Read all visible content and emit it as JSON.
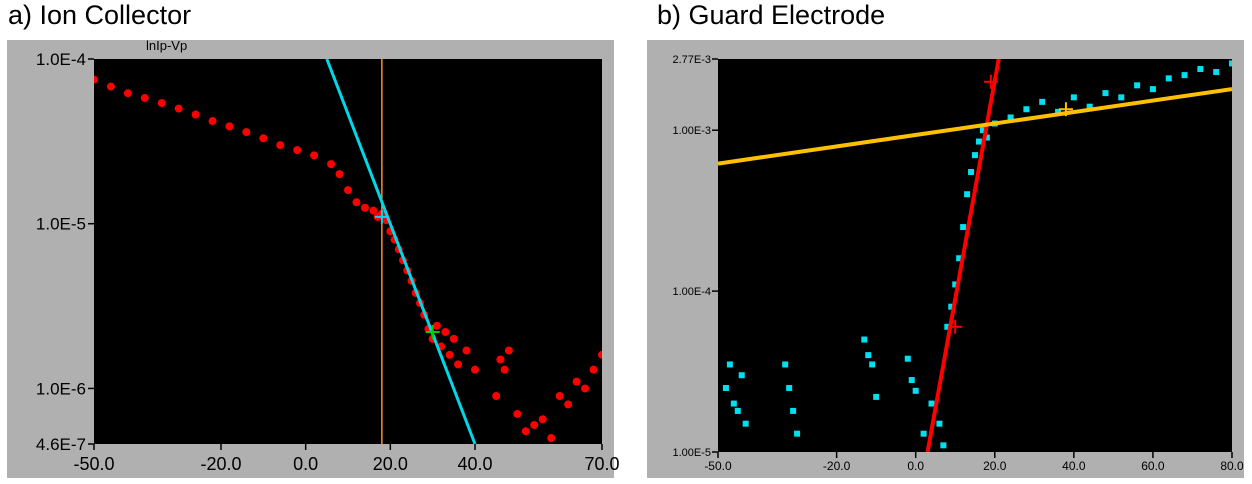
{
  "panels": {
    "a": {
      "title": "a) Ion Collector"
    },
    "b": {
      "title": "b) Guard Electrode"
    }
  },
  "chart_data": [
    {
      "type": "scatter",
      "title": "",
      "xlabel": "",
      "ylabel": "",
      "annotation": "lnIp-Vp",
      "x_scale": "linear",
      "y_scale": "log",
      "xlim": [
        -50,
        70
      ],
      "ylim": [
        4.6e-07,
        0.0001
      ],
      "x_ticks": [
        "-50.0",
        "-20.0",
        "0.0",
        "20.0",
        "40.0",
        "70.0"
      ],
      "y_ticks": [
        "1.0E-4",
        "1.0E-5",
        "1.0E-6",
        "4.6E-7"
      ],
      "y_tick_values": [
        0.0001,
        1e-05,
        1e-06,
        4.6e-07
      ],
      "x_tick_values": [
        -50,
        -20,
        0,
        20,
        40,
        70
      ],
      "grid": false,
      "colors": {
        "background": "#000000",
        "frame": "#b0b0b0",
        "data": "#ff0000",
        "fit": "#00d8e8",
        "marker": "#00d000",
        "vline": "#ff8c28"
      },
      "vline_x": 18,
      "series": [
        {
          "style": "points",
          "color": "#ff0000",
          "x": [
            -50,
            -46,
            -42,
            -38,
            -34,
            -30,
            -26,
            -22,
            -18,
            -14,
            -10,
            -6,
            -2,
            2,
            6,
            8,
            10,
            12,
            14,
            16,
            17,
            18,
            19,
            20,
            21,
            22,
            23,
            24,
            25,
            26,
            27,
            28,
            29,
            30,
            31,
            32,
            33,
            34,
            35,
            36,
            38,
            40,
            45,
            46,
            47,
            48,
            50,
            52,
            54,
            56,
            58,
            60,
            62,
            64,
            66,
            68,
            70
          ],
          "y": [
            7.5e-05,
            6.8e-05,
            6.2e-05,
            5.8e-05,
            5.4e-05,
            5e-05,
            4.6e-05,
            4.2e-05,
            3.9e-05,
            3.6e-05,
            3.3e-05,
            3e-05,
            2.8e-05,
            2.6e-05,
            2.3e-05,
            2e-05,
            1.6e-05,
            1.35e-05,
            1.25e-05,
            1.2e-05,
            1.1e-05,
            1.15e-05,
            1.05e-05,
            9e-06,
            8e-06,
            7e-06,
            6e-06,
            5.2e-06,
            4.5e-06,
            3.8e-06,
            3.3e-06,
            2.8e-06,
            2.3e-06,
            2e-06,
            2.4e-06,
            1.8e-06,
            2.2e-06,
            1.6e-06,
            2e-06,
            1.4e-06,
            1.7e-06,
            1.3e-06,
            9e-07,
            1.5e-06,
            1.3e-06,
            1.7e-06,
            7e-07,
            5.5e-07,
            6e-07,
            6.5e-07,
            5e-07,
            9e-07,
            8e-07,
            1.1e-06,
            1e-06,
            1.3e-06,
            1.6e-06
          ]
        },
        {
          "style": "line",
          "color": "#00d8e8",
          "x": [
            5,
            40
          ],
          "y": [
            0.0001,
            4.6e-07
          ]
        }
      ],
      "markers": [
        {
          "x": 18,
          "y": 1.1e-05,
          "color": "#00d8e8"
        },
        {
          "x": 30,
          "y": 2.2e-06,
          "color": "#00d000"
        }
      ]
    },
    {
      "type": "scatter",
      "title": "",
      "xlabel": "",
      "ylabel": "",
      "x_scale": "linear",
      "y_scale": "log",
      "xlim": [
        -50,
        80
      ],
      "ylim": [
        1e-05,
        0.00277
      ],
      "x_ticks": [
        "-50.0",
        "-20.0",
        "0.0",
        "20.0",
        "40.0",
        "60.0",
        "80.0"
      ],
      "x_tick_values": [
        -50,
        -20,
        0,
        20,
        40,
        60,
        80
      ],
      "y_ticks": [
        "2.77E-3",
        "1.00E-3",
        "1.00E-4",
        "1.00E-5"
      ],
      "y_tick_values": [
        0.00277,
        0.001,
        0.0001,
        1e-05
      ],
      "grid": false,
      "colors": {
        "background": "#000000",
        "frame": "#b0b0b0",
        "data": "#00e0f0",
        "fit1": "#ff0000",
        "fit2": "#ffc000"
      },
      "series": [
        {
          "style": "points",
          "color": "#00e0f0",
          "x": [
            -48,
            -47,
            -46,
            -45,
            -44,
            -43,
            -33,
            -32,
            -31,
            -30,
            -13,
            -12,
            -11,
            -10,
            -2,
            -1,
            0,
            2,
            4,
            6,
            7,
            8,
            9,
            10,
            11,
            12,
            13,
            14,
            15,
            16,
            17,
            18,
            20,
            24,
            28,
            32,
            36,
            40,
            44,
            48,
            52,
            56,
            60,
            64,
            68,
            72,
            76,
            80
          ],
          "y": [
            2.5e-05,
            3.5e-05,
            2e-05,
            1.8e-05,
            3e-05,
            1.5e-05,
            3.5e-05,
            2.5e-05,
            1.8e-05,
            1.3e-05,
            5e-05,
            4e-05,
            3.5e-05,
            2.2e-05,
            3.8e-05,
            2.8e-05,
            2.4e-05,
            1.3e-05,
            2e-05,
            1.5e-05,
            1.1e-05,
            6e-05,
            8e-05,
            0.00011,
            0.00016,
            0.00025,
            0.0004,
            0.00055,
            0.0007,
            0.00085,
            0.001,
            0.0009,
            0.0011,
            0.0012,
            0.00135,
            0.0015,
            0.0013,
            0.0016,
            0.0014,
            0.0017,
            0.0016,
            0.0019,
            0.0018,
            0.0021,
            0.0022,
            0.0024,
            0.0023,
            0.0026
          ]
        },
        {
          "style": "line",
          "color": "#ff0000",
          "x": [
            3,
            21
          ],
          "y": [
            1e-05,
            0.00277
          ]
        },
        {
          "style": "line",
          "color": "#ffc000",
          "x": [
            -50,
            80
          ],
          "y": [
            0.00062,
            0.0018
          ]
        }
      ],
      "markers": [
        {
          "x": 19,
          "y": 0.002,
          "color": "#ff0000"
        },
        {
          "x": 10,
          "y": 6e-05,
          "color": "#ff0000"
        },
        {
          "x": 38,
          "y": 0.00135,
          "color": "#ffc000"
        }
      ]
    }
  ]
}
